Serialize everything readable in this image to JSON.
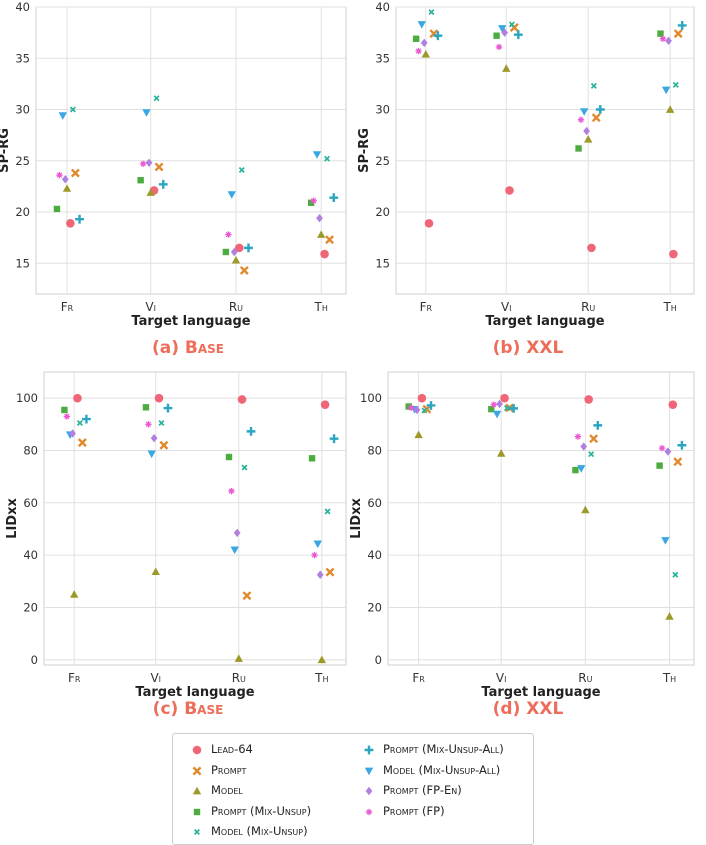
{
  "figure": {
    "captions": [
      {
        "label": "(a) ",
        "name": "Base"
      },
      {
        "label": "(b) ",
        "name": "XXL"
      },
      {
        "label": "(c) ",
        "name": "Base"
      },
      {
        "label": "(d) ",
        "name": "XXL"
      }
    ]
  },
  "legend": [
    {
      "name": "Lead-64",
      "marker": "circle",
      "color": "#ee6677"
    },
    {
      "name": "Prompt",
      "marker": "x",
      "color": "#e08a2e"
    },
    {
      "name": "Model",
      "marker": "triangle-up",
      "color": "#9e9a2a"
    },
    {
      "name": "Prompt (Mix-Unsup)",
      "marker": "square",
      "color": "#4cac3f"
    },
    {
      "name": "Model (Mix-Unsup)",
      "marker": "x-small",
      "color": "#2bb29a"
    },
    {
      "name": "Prompt (Mix-Unsup-All)",
      "marker": "plus",
      "color": "#2aa6c2"
    },
    {
      "name": "Model (Mix-Unsup-All)",
      "marker": "triangle-down",
      "color": "#3aa7e3"
    },
    {
      "name": "Prompt (FP-En)",
      "marker": "diamond",
      "color": "#b07fe0"
    },
    {
      "name": "Prompt (FP)",
      "marker": "star",
      "color": "#ea57d0"
    }
  ],
  "chart_data": [
    {
      "type": "scatter",
      "panel": "a",
      "xlabel": "Target language",
      "ylabel": "SP-RG",
      "categories": [
        "Fr",
        "Vi",
        "Ru",
        "Th"
      ],
      "ylim": [
        12,
        40
      ],
      "yticks": [
        15,
        20,
        25,
        30,
        35,
        40
      ],
      "grid": true,
      "series": [
        {
          "name": "Lead-64",
          "values": [
            18.9,
            22.1,
            16.5,
            15.9
          ]
        },
        {
          "name": "Prompt",
          "values": [
            23.8,
            24.4,
            14.3,
            17.3
          ]
        },
        {
          "name": "Model",
          "values": [
            22.3,
            21.9,
            15.3,
            17.8
          ]
        },
        {
          "name": "Prompt (Mix-Unsup)",
          "values": [
            20.3,
            23.1,
            16.1,
            20.9
          ]
        },
        {
          "name": "Model (Mix-Unsup)",
          "values": [
            30.0,
            31.1,
            24.1,
            25.2
          ]
        },
        {
          "name": "Prompt (Mix-Unsup-All)",
          "values": [
            19.3,
            22.7,
            16.5,
            21.4
          ]
        },
        {
          "name": "Model (Mix-Unsup-All)",
          "values": [
            29.4,
            29.7,
            21.7,
            25.6
          ]
        },
        {
          "name": "Prompt (FP-En)",
          "values": [
            23.2,
            24.8,
            16.1,
            19.4
          ]
        },
        {
          "name": "Prompt (FP)",
          "values": [
            23.6,
            24.7,
            17.8,
            21.1
          ]
        }
      ]
    },
    {
      "type": "scatter",
      "panel": "b",
      "xlabel": "Target language",
      "ylabel": "SP-RG",
      "categories": [
        "Fr",
        "Vi",
        "Ru",
        "Th"
      ],
      "ylim": [
        12,
        40
      ],
      "yticks": [
        15,
        20,
        25,
        30,
        35,
        40
      ],
      "grid": true,
      "series": [
        {
          "name": "Lead-64",
          "values": [
            18.9,
            22.1,
            16.5,
            15.9
          ]
        },
        {
          "name": "Prompt",
          "values": [
            37.4,
            38.0,
            29.2,
            37.4
          ]
        },
        {
          "name": "Model",
          "values": [
            35.4,
            34.0,
            27.1,
            30.0
          ]
        },
        {
          "name": "Prompt (Mix-Unsup)",
          "values": [
            36.9,
            37.2,
            26.2,
            37.4
          ]
        },
        {
          "name": "Model (Mix-Unsup)",
          "values": [
            39.5,
            38.3,
            32.3,
            32.4
          ]
        },
        {
          "name": "Prompt (Mix-Unsup-All)",
          "values": [
            37.2,
            37.3,
            30.0,
            38.2
          ]
        },
        {
          "name": "Model (Mix-Unsup-All)",
          "values": [
            38.3,
            37.9,
            29.8,
            31.9
          ]
        },
        {
          "name": "Prompt (FP-En)",
          "values": [
            36.5,
            37.5,
            27.9,
            36.7
          ]
        },
        {
          "name": "Prompt (FP)",
          "values": [
            35.7,
            36.1,
            29.0,
            36.9
          ]
        }
      ]
    },
    {
      "type": "scatter",
      "panel": "c",
      "xlabel": "Target language",
      "ylabel": "LIDxx",
      "categories": [
        "Fr",
        "Vi",
        "Ru",
        "Th"
      ],
      "ylim": [
        -2,
        110
      ],
      "yticks": [
        0,
        20,
        40,
        60,
        80,
        100
      ],
      "grid": true,
      "series": [
        {
          "name": "Lead-64",
          "values": [
            100,
            100,
            99.5,
            97.5
          ]
        },
        {
          "name": "Prompt",
          "values": [
            83,
            82,
            24.5,
            33.5
          ]
        },
        {
          "name": "Model",
          "values": [
            25,
            33.7,
            0.5,
            0
          ]
        },
        {
          "name": "Prompt (Mix-Unsup)",
          "values": [
            95.5,
            96.5,
            77.5,
            77
          ]
        },
        {
          "name": "Model (Mix-Unsup)",
          "values": [
            90.5,
            90.5,
            73.5,
            56.7
          ]
        },
        {
          "name": "Prompt (Mix-Unsup-All)",
          "values": [
            92,
            96.2,
            87.3,
            84.5
          ]
        },
        {
          "name": "Model (Mix-Unsup-All)",
          "values": [
            86,
            78.7,
            42,
            44.3
          ]
        },
        {
          "name": "Prompt (FP-En)",
          "values": [
            86.5,
            84.7,
            48.5,
            32.5
          ]
        },
        {
          "name": "Prompt (FP)",
          "values": [
            93,
            90,
            64.5,
            40
          ]
        }
      ]
    },
    {
      "type": "scatter",
      "panel": "d",
      "xlabel": "Target language",
      "ylabel": "LIDxx",
      "categories": [
        "Fr",
        "Vi",
        "Ru",
        "Th"
      ],
      "ylim": [
        -2,
        110
      ],
      "yticks": [
        0,
        20,
        40,
        60,
        80,
        100
      ],
      "grid": true,
      "series": [
        {
          "name": "Lead-64",
          "values": [
            100,
            100,
            99.5,
            97.5
          ]
        },
        {
          "name": "Prompt",
          "values": [
            95.8,
            96.3,
            84.5,
            75.7
          ]
        },
        {
          "name": "Model",
          "values": [
            86,
            78.9,
            57.3,
            16.6
          ]
        },
        {
          "name": "Prompt (Mix-Unsup)",
          "values": [
            96.8,
            95.8,
            72.5,
            74.2
          ]
        },
        {
          "name": "Model (Mix-Unsup)",
          "values": [
            95.3,
            96.2,
            78.6,
            32.5
          ]
        },
        {
          "name": "Prompt (Mix-Unsup-All)",
          "values": [
            97.2,
            96.1,
            89.6,
            82
          ]
        },
        {
          "name": "Model (Mix-Unsup-All)",
          "values": [
            95.7,
            93.9,
            73.1,
            45.6
          ]
        },
        {
          "name": "Prompt (FP-En)",
          "values": [
            95.5,
            97.8,
            81.5,
            79.6
          ]
        },
        {
          "name": "Prompt (FP)",
          "values": [
            96.3,
            97.5,
            85.3,
            80.9
          ]
        }
      ]
    }
  ]
}
